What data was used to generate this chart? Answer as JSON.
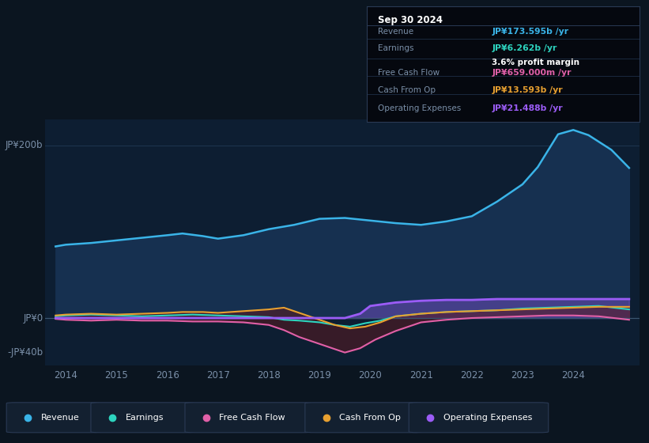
{
  "bg_color": "#0b1520",
  "plot_bg_color": "#0d1e32",
  "grid_color": "#1e3550",
  "text_color": "#7a8fa8",
  "ylabel_200": "JP¥200b",
  "ylabel_0": "JP¥0",
  "ylabel_neg40": "-JP¥40b",
  "ylim": [
    -55,
    230
  ],
  "xlim_start": 2013.6,
  "xlim_end": 2025.3,
  "xticks": [
    2014,
    2015,
    2016,
    2017,
    2018,
    2019,
    2020,
    2021,
    2022,
    2023,
    2024
  ],
  "revenue_color": "#3ab4e8",
  "earnings_color": "#2dd4bf",
  "fcf_color": "#e060a8",
  "cashop_color": "#e8a030",
  "opex_color": "#9b5cf6",
  "revenue_fill_color": "#163050",
  "revenue_x": [
    2013.8,
    2014.0,
    2014.5,
    2015.0,
    2015.5,
    2016.0,
    2016.3,
    2016.7,
    2017.0,
    2017.5,
    2018.0,
    2018.5,
    2019.0,
    2019.5,
    2020.0,
    2020.5,
    2021.0,
    2021.5,
    2022.0,
    2022.5,
    2023.0,
    2023.3,
    2023.7,
    2024.0,
    2024.3,
    2024.75,
    2025.1
  ],
  "revenue_y": [
    83,
    85,
    87,
    90,
    93,
    96,
    98,
    95,
    92,
    96,
    103,
    108,
    115,
    116,
    113,
    110,
    108,
    112,
    118,
    135,
    155,
    175,
    213,
    218,
    212,
    195,
    174
  ],
  "earnings_x": [
    2013.8,
    2014.0,
    2014.5,
    2015.0,
    2015.5,
    2016.0,
    2016.5,
    2017.0,
    2017.5,
    2018.0,
    2018.3,
    2018.6,
    2019.0,
    2019.3,
    2019.6,
    2019.9,
    2020.2,
    2020.5,
    2021.0,
    2021.5,
    2022.0,
    2022.5,
    2023.0,
    2023.5,
    2024.0,
    2024.5,
    2025.1
  ],
  "earnings_y": [
    2,
    3,
    4,
    3,
    2,
    3,
    4,
    3,
    2,
    1,
    -2,
    -3,
    -5,
    -8,
    -10,
    -6,
    -3,
    2,
    5,
    7,
    8,
    9,
    11,
    12,
    13,
    14,
    10
  ],
  "fcf_x": [
    2013.8,
    2014.0,
    2014.5,
    2015.0,
    2015.5,
    2016.0,
    2016.5,
    2017.0,
    2017.5,
    2018.0,
    2018.3,
    2018.6,
    2019.0,
    2019.3,
    2019.5,
    2019.8,
    2020.1,
    2020.5,
    2021.0,
    2021.5,
    2022.0,
    2022.5,
    2023.0,
    2023.5,
    2024.0,
    2024.5,
    2025.1
  ],
  "fcf_y": [
    -1,
    -2,
    -3,
    -2,
    -3,
    -3,
    -4,
    -4,
    -5,
    -8,
    -14,
    -22,
    -30,
    -36,
    -40,
    -35,
    -25,
    -15,
    -5,
    -2,
    0,
    1,
    2,
    3,
    3,
    2,
    -2
  ],
  "cashop_x": [
    2013.8,
    2014.0,
    2014.5,
    2015.0,
    2015.5,
    2016.0,
    2016.3,
    2016.7,
    2017.0,
    2017.5,
    2018.0,
    2018.3,
    2018.6,
    2019.0,
    2019.3,
    2019.6,
    2019.9,
    2020.2,
    2020.5,
    2021.0,
    2021.5,
    2022.0,
    2022.5,
    2023.0,
    2023.5,
    2024.0,
    2024.5,
    2025.1
  ],
  "cashop_y": [
    3,
    4,
    5,
    4,
    5,
    6,
    7,
    7,
    6,
    8,
    10,
    12,
    6,
    -2,
    -8,
    -12,
    -10,
    -5,
    2,
    5,
    7,
    8,
    9,
    10,
    11,
    12,
    13,
    13
  ],
  "opex_x": [
    2013.8,
    2019.5,
    2019.8,
    2020.0,
    2020.5,
    2021.0,
    2021.5,
    2022.0,
    2022.5,
    2023.0,
    2023.5,
    2024.0,
    2024.5,
    2025.1
  ],
  "opex_y": [
    0,
    0,
    5,
    14,
    18,
    20,
    21,
    21,
    22,
    22,
    22,
    22,
    22,
    22
  ],
  "tooltip_date": "Sep 30 2024",
  "tooltip_revenue": "JP¥173.595b /yr",
  "tooltip_earnings": "JP¥6.262b /yr",
  "tooltip_margin": "3.6% profit margin",
  "tooltip_fcf": "JP¥659.000m /yr",
  "tooltip_cashop": "JP¥13.593b /yr",
  "tooltip_opex": "JP¥21.488b /yr",
  "tooltip_revenue_color": "#3ab4e8",
  "tooltip_earnings_color": "#2dd4bf",
  "tooltip_fcf_color": "#e060a8",
  "tooltip_cashop_color": "#e8a030",
  "tooltip_opex_color": "#9b5cf6",
  "legend_labels": [
    "Revenue",
    "Earnings",
    "Free Cash Flow",
    "Cash From Op",
    "Operating Expenses"
  ],
  "legend_colors": [
    "#3ab4e8",
    "#2dd4bf",
    "#e060a8",
    "#e8a030",
    "#9b5cf6"
  ]
}
